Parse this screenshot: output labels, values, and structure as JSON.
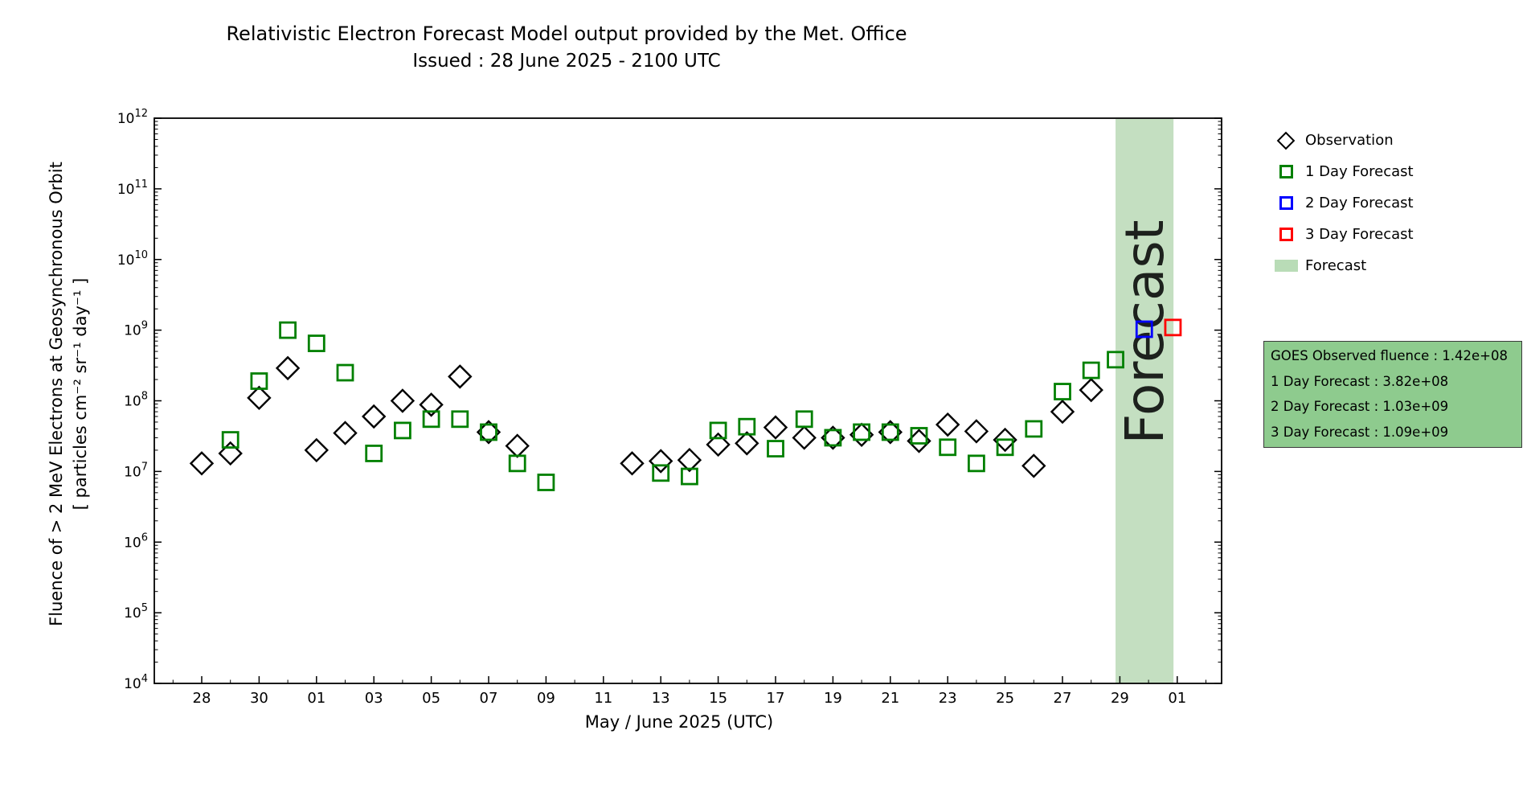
{
  "legend": {
    "items": [
      {
        "label": "Observation",
        "marker": "diamond",
        "color": "#000000"
      },
      {
        "label": "1 Day Forecast",
        "marker": "square",
        "color": "#008000"
      },
      {
        "label": "2 Day Forecast",
        "marker": "square",
        "color": "#0000ff"
      },
      {
        "label": "3 Day Forecast",
        "marker": "square",
        "color": "#ff0000"
      },
      {
        "label": "Forecast",
        "marker": "patch",
        "color": "#b9dcb7"
      }
    ]
  },
  "info_box": {
    "background": "#8ecb8e",
    "lines": [
      "GOES Observed fluence : 1.42e+08",
      "1 Day Forecast : 3.82e+08",
      "2 Day Forecast : 1.03e+09",
      "3 Day Forecast : 1.09e+09"
    ]
  },
  "chart_data": {
    "type": "scatter",
    "title": "Relativistic Electron Forecast Model output provided by the Met. Office",
    "subtitle": "Issued : 28 June 2025 - 2100 UTC",
    "xlabel": "May / June 2025 (UTC)",
    "ylabel_line1": "Fluence of > 2 MeV Electrons at Geosynchronous Orbit",
    "ylabel_line2": "[ particles cm⁻² sr⁻¹ day⁻¹ ]",
    "y_axis": {
      "scale": "log",
      "min_exp": 4,
      "max_exp": 12,
      "tick_base": "10"
    },
    "x_axis": {
      "start_date": "2025-05-28",
      "days_per_major_tick": 2,
      "tick_labels": [
        "28",
        "30",
        "01",
        "03",
        "05",
        "07",
        "09",
        "11",
        "13",
        "15",
        "17",
        "19",
        "21",
        "23",
        "25",
        "27",
        "29",
        "01"
      ]
    },
    "forecast_band": {
      "day_start": 31.85,
      "day_end": 33.87,
      "color": "#c4dfc1",
      "watermark": "Forecast",
      "watermark_color": "#74876f"
    },
    "series": [
      {
        "name": "Observation",
        "marker": "diamond",
        "color": "#000000",
        "points": [
          {
            "day": 0,
            "date": "May 28",
            "value": 13000000.0
          },
          {
            "day": 1,
            "date": "May 29",
            "value": 18000000.0
          },
          {
            "day": 2,
            "date": "May 30",
            "value": 110000000.0
          },
          {
            "day": 3,
            "date": "May 31",
            "value": 290000000.0
          },
          {
            "day": 4,
            "date": "Jun 01",
            "value": 20000000.0
          },
          {
            "day": 5,
            "date": "Jun 02",
            "value": 35000000.0
          },
          {
            "day": 6,
            "date": "Jun 03",
            "value": 60000000.0
          },
          {
            "day": 7,
            "date": "Jun 04",
            "value": 100000000.0
          },
          {
            "day": 8,
            "date": "Jun 05",
            "value": 88000000.0
          },
          {
            "day": 9,
            "date": "Jun 06",
            "value": 220000000.0
          },
          {
            "day": 10,
            "date": "Jun 07",
            "value": 36000000.0
          },
          {
            "day": 11,
            "date": "Jun 08",
            "value": 23000000.0
          },
          {
            "day": 15,
            "date": "Jun 12",
            "value": 13000000.0
          },
          {
            "day": 16,
            "date": "Jun 13",
            "value": 14000000.0
          },
          {
            "day": 17,
            "date": "Jun 14",
            "value": 14500000.0
          },
          {
            "day": 18,
            "date": "Jun 15",
            "value": 24000000.0
          },
          {
            "day": 19,
            "date": "Jun 16",
            "value": 25000000.0
          },
          {
            "day": 20,
            "date": "Jun 17",
            "value": 42000000.0
          },
          {
            "day": 21,
            "date": "Jun 18",
            "value": 30000000.0
          },
          {
            "day": 22,
            "date": "Jun 19",
            "value": 30000000.0
          },
          {
            "day": 23,
            "date": "Jun 20",
            "value": 33000000.0
          },
          {
            "day": 24,
            "date": "Jun 21",
            "value": 36000000.0
          },
          {
            "day": 25,
            "date": "Jun 22",
            "value": 27000000.0
          },
          {
            "day": 26,
            "date": "Jun 23",
            "value": 46000000.0
          },
          {
            "day": 27,
            "date": "Jun 24",
            "value": 37000000.0
          },
          {
            "day": 28,
            "date": "Jun 25",
            "value": 28000000.0
          },
          {
            "day": 29,
            "date": "Jun 26",
            "value": 12000000.0
          },
          {
            "day": 30,
            "date": "Jun 27",
            "value": 70000000.0
          },
          {
            "day": 31,
            "date": "Jun 28",
            "value": 142000000.0
          }
        ]
      },
      {
        "name": "1 Day Forecast",
        "marker": "square",
        "color": "#008000",
        "points": [
          {
            "day": 1,
            "date": "May 29",
            "value": 28000000.0
          },
          {
            "day": 2,
            "date": "May 30",
            "value": 190000000.0
          },
          {
            "day": 3,
            "date": "May 31",
            "value": 1000000000.0
          },
          {
            "day": 4,
            "date": "Jun 01",
            "value": 650000000.0
          },
          {
            "day": 5,
            "date": "Jun 02",
            "value": 250000000.0
          },
          {
            "day": 6,
            "date": "Jun 03",
            "value": 18000000.0
          },
          {
            "day": 7,
            "date": "Jun 04",
            "value": 38000000.0
          },
          {
            "day": 8,
            "date": "Jun 05",
            "value": 55000000.0
          },
          {
            "day": 9,
            "date": "Jun 06",
            "value": 55000000.0
          },
          {
            "day": 10,
            "date": "Jun 07",
            "value": 36000000.0
          },
          {
            "day": 11,
            "date": "Jun 08",
            "value": 13000000.0
          },
          {
            "day": 12,
            "date": "Jun 09",
            "value": 7000000.0
          },
          {
            "day": 16,
            "date": "Jun 13",
            "value": 9500000.0
          },
          {
            "day": 17,
            "date": "Jun 14",
            "value": 8500000.0
          },
          {
            "day": 18,
            "date": "Jun 15",
            "value": 38000000.0
          },
          {
            "day": 19,
            "date": "Jun 16",
            "value": 43000000.0
          },
          {
            "day": 20,
            "date": "Jun 17",
            "value": 21000000.0
          },
          {
            "day": 21,
            "date": "Jun 18",
            "value": 55000000.0
          },
          {
            "day": 22,
            "date": "Jun 19",
            "value": 30000000.0
          },
          {
            "day": 23,
            "date": "Jun 20",
            "value": 36000000.0
          },
          {
            "day": 24,
            "date": "Jun 21",
            "value": 36000000.0
          },
          {
            "day": 25,
            "date": "Jun 22",
            "value": 32000000.0
          },
          {
            "day": 26,
            "date": "Jun 23",
            "value": 22000000.0
          },
          {
            "day": 27,
            "date": "Jun 24",
            "value": 13000000.0
          },
          {
            "day": 28,
            "date": "Jun 25",
            "value": 22000000.0
          },
          {
            "day": 29,
            "date": "Jun 26",
            "value": 40000000.0
          },
          {
            "day": 30,
            "date": "Jun 27",
            "value": 135000000.0
          },
          {
            "day": 31,
            "date": "Jun 28",
            "value": 270000000.0
          },
          {
            "day": 31.85,
            "date": "Jun 29",
            "value": 382000000.0
          }
        ]
      },
      {
        "name": "2 Day Forecast",
        "marker": "square",
        "color": "#0000ff",
        "points": [
          {
            "day": 32.85,
            "date": "Jun 30",
            "value": 1030000000.0
          }
        ]
      },
      {
        "name": "3 Day Forecast",
        "marker": "square",
        "color": "#ff0000",
        "points": [
          {
            "day": 33.85,
            "date": "Jul 01",
            "value": 1090000000.0
          }
        ]
      }
    ]
  }
}
